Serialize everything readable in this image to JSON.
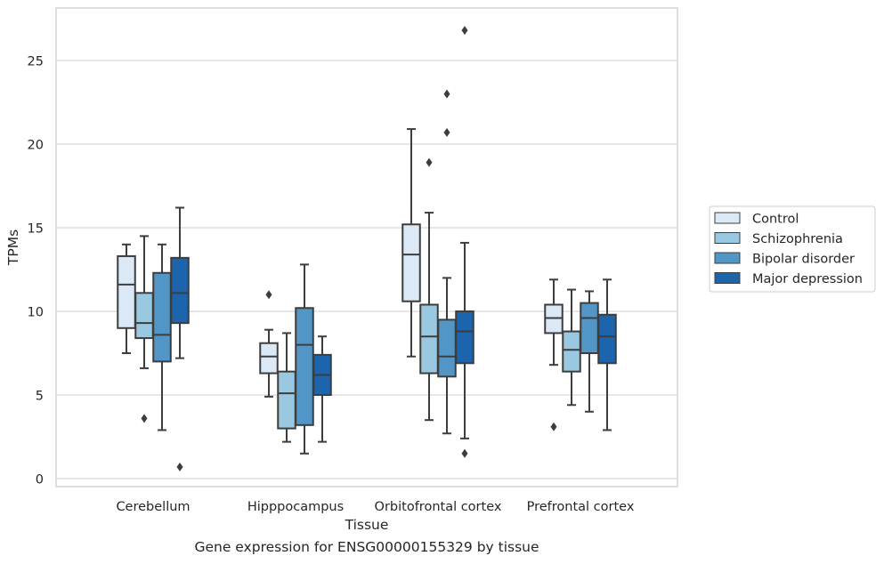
{
  "caption": "Gene expression for ENSG00000155329 by tissue",
  "chart_data": {
    "type": "boxplot",
    "xlabel": "Tissue",
    "ylabel": "TPMs",
    "ylim": [
      -0.5,
      28
    ],
    "yticks": [
      0,
      5,
      10,
      15,
      20,
      25
    ],
    "grid": "horizontal",
    "legend_position": "right, outside plot",
    "categories": [
      "Cerebellum",
      "Hipppocampus",
      "Orbitofrontal cortex",
      "Prefrontal cortex"
    ],
    "series": [
      {
        "name": "Control",
        "color": "#dbe9f6",
        "boxes": [
          {
            "whislo": 7.5,
            "q1": 9.0,
            "med": 11.6,
            "q3": 13.3,
            "whishi": 14.0,
            "fliers": []
          },
          {
            "whislo": 4.9,
            "q1": 6.3,
            "med": 7.3,
            "q3": 8.1,
            "whishi": 8.9,
            "fliers": [
              11.0
            ]
          },
          {
            "whislo": 7.3,
            "q1": 10.6,
            "med": 13.4,
            "q3": 15.2,
            "whishi": 20.9,
            "fliers": []
          },
          {
            "whislo": 6.8,
            "q1": 8.7,
            "med": 9.6,
            "q3": 10.4,
            "whishi": 11.9,
            "fliers": [
              3.1
            ]
          }
        ]
      },
      {
        "name": "Schizophrenia",
        "color": "#9ac8e0",
        "boxes": [
          {
            "whislo": 6.6,
            "q1": 8.4,
            "med": 9.3,
            "q3": 11.1,
            "whishi": 14.5,
            "fliers": [
              3.6
            ]
          },
          {
            "whislo": 2.2,
            "q1": 3.0,
            "med": 5.1,
            "q3": 6.4,
            "whishi": 8.7,
            "fliers": []
          },
          {
            "whislo": 3.5,
            "q1": 6.3,
            "med": 8.5,
            "q3": 10.4,
            "whishi": 15.9,
            "fliers": [
              18.9
            ]
          },
          {
            "whislo": 4.4,
            "q1": 6.4,
            "med": 7.7,
            "q3": 8.8,
            "whishi": 11.3,
            "fliers": []
          }
        ]
      },
      {
        "name": "Bipolar disorder",
        "color": "#5196c6",
        "boxes": [
          {
            "whislo": 2.9,
            "q1": 7.0,
            "med": 8.6,
            "q3": 12.3,
            "whishi": 14.0,
            "fliers": []
          },
          {
            "whislo": 1.5,
            "q1": 3.2,
            "med": 8.0,
            "q3": 10.2,
            "whishi": 12.8,
            "fliers": []
          },
          {
            "whislo": 2.7,
            "q1": 6.1,
            "med": 7.3,
            "q3": 9.5,
            "whishi": 12.0,
            "fliers": [
              20.7,
              23.0
            ]
          },
          {
            "whislo": 4.0,
            "q1": 7.5,
            "med": 9.6,
            "q3": 10.5,
            "whishi": 11.2,
            "fliers": []
          }
        ]
      },
      {
        "name": "Major depression",
        "color": "#1c64ab",
        "boxes": [
          {
            "whislo": 7.2,
            "q1": 9.3,
            "med": 11.1,
            "q3": 13.2,
            "whishi": 16.2,
            "fliers": [
              0.7
            ]
          },
          {
            "whislo": 2.2,
            "q1": 5.0,
            "med": 6.2,
            "q3": 7.4,
            "whishi": 8.5,
            "fliers": []
          },
          {
            "whislo": 2.4,
            "q1": 6.9,
            "med": 8.8,
            "q3": 10.0,
            "whishi": 14.1,
            "fliers": [
              1.5,
              26.8
            ]
          },
          {
            "whislo": 2.9,
            "q1": 6.9,
            "med": 8.5,
            "q3": 9.8,
            "whishi": 11.9,
            "fliers": []
          }
        ]
      }
    ]
  }
}
